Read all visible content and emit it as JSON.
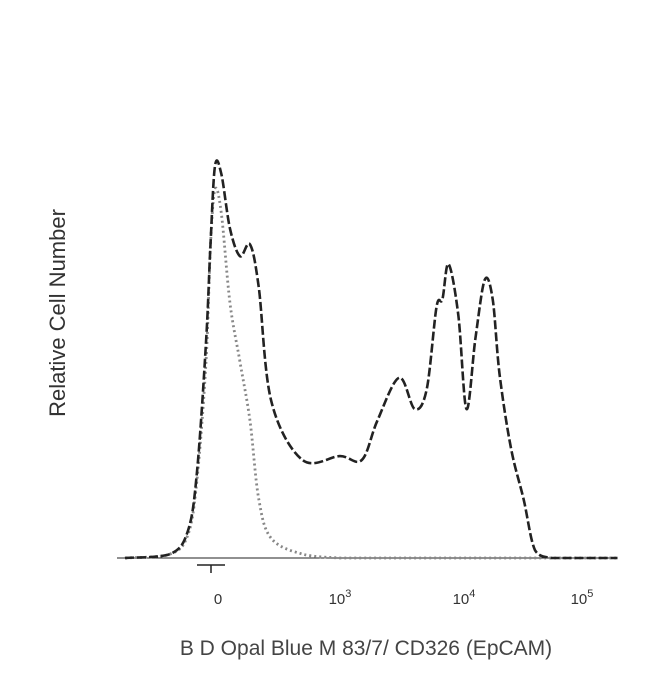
{
  "chart_data": {
    "type": "line",
    "title": "",
    "xlabel": "B D Opal Blue M 83/7/ CD326 (EpCAM)",
    "ylabel": "Relative Cell Number",
    "x_scale": "biexponential",
    "xlim": [
      -2000,
      200000
    ],
    "ylim": [
      0,
      100
    ],
    "grid": false,
    "legend": "none",
    "ticks": [
      {
        "value": 0,
        "label": "0"
      },
      {
        "value": 1000,
        "label": "10^3"
      },
      {
        "value": 10000,
        "label": "10^4"
      },
      {
        "value": 100000,
        "label": "10^5"
      }
    ],
    "series": [
      {
        "style": "dashed",
        "color": "#222222",
        "x": [
          -2000,
          -1000,
          -600,
          -400,
          -200,
          -100,
          0,
          50,
          120,
          200,
          280,
          350,
          450,
          700,
          1000,
          1500,
          2000,
          3000,
          4000,
          5000,
          6000,
          6700,
          7500,
          9000,
          10500,
          12500,
          15000,
          17500,
          20000,
          25000,
          32000,
          40000,
          55000,
          70000,
          100000,
          200000
        ],
        "y": [
          0,
          1,
          7,
          22,
          55,
          80,
          100,
          98,
          84,
          77,
          80,
          69,
          40,
          25,
          26,
          25,
          35,
          46,
          38,
          43,
          64,
          66,
          75,
          62,
          38,
          56,
          71,
          66,
          47,
          28,
          15,
          2,
          0,
          0,
          0,
          0
        ]
      },
      {
        "style": "dotted",
        "color": "#888888",
        "x": [
          -2000,
          -1000,
          -600,
          -400,
          -200,
          -100,
          0,
          50,
          120,
          200,
          280,
          350,
          450,
          700,
          1000,
          1500,
          2000,
          3000,
          5000,
          10000,
          100000,
          200000
        ],
        "y": [
          0,
          1,
          6,
          20,
          50,
          80,
          94,
          88,
          65,
          50,
          35,
          15,
          5,
          1,
          0,
          0,
          0,
          0,
          0,
          0,
          0,
          0
        ]
      }
    ]
  }
}
